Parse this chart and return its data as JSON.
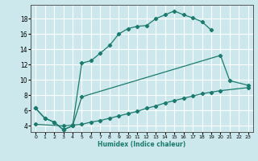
{
  "xlabel": "Humidex (Indice chaleur)",
  "bg_color": "#cce8ec",
  "grid_color": "#ffffff",
  "line_color": "#1a7a6e",
  "xlim": [
    -0.5,
    23.5
  ],
  "ylim": [
    3.2,
    19.8
  ],
  "xticks": [
    0,
    1,
    2,
    3,
    4,
    5,
    6,
    7,
    8,
    9,
    10,
    11,
    12,
    13,
    14,
    15,
    16,
    17,
    18,
    19,
    20,
    21,
    22,
    23
  ],
  "yticks": [
    4,
    6,
    8,
    10,
    12,
    14,
    16,
    18
  ],
  "line1_x": [
    0,
    1,
    2,
    3,
    4,
    5,
    6,
    7,
    8,
    9,
    10,
    11,
    12,
    13,
    14,
    15,
    16,
    17,
    18,
    19
  ],
  "line1_y": [
    6.3,
    5.0,
    4.5,
    3.5,
    4.0,
    12.2,
    12.5,
    13.5,
    14.5,
    16.0,
    16.7,
    17.0,
    17.1,
    18.0,
    18.5,
    19.0,
    18.5,
    18.1,
    17.6,
    16.5
  ],
  "line2_x": [
    0,
    1,
    2,
    3,
    4,
    5,
    20,
    21,
    23
  ],
  "line2_y": [
    6.3,
    5.0,
    4.5,
    3.5,
    4.0,
    7.8,
    13.2,
    9.9,
    9.3
  ],
  "line3_x": [
    0,
    3,
    4,
    5,
    6,
    7,
    8,
    9,
    10,
    11,
    12,
    13,
    14,
    15,
    16,
    17,
    18,
    19,
    20,
    23
  ],
  "line3_y": [
    4.2,
    4.0,
    4.1,
    4.2,
    4.5,
    4.7,
    5.0,
    5.3,
    5.6,
    5.9,
    6.3,
    6.6,
    7.0,
    7.3,
    7.6,
    7.9,
    8.2,
    8.4,
    8.6,
    9.0
  ]
}
